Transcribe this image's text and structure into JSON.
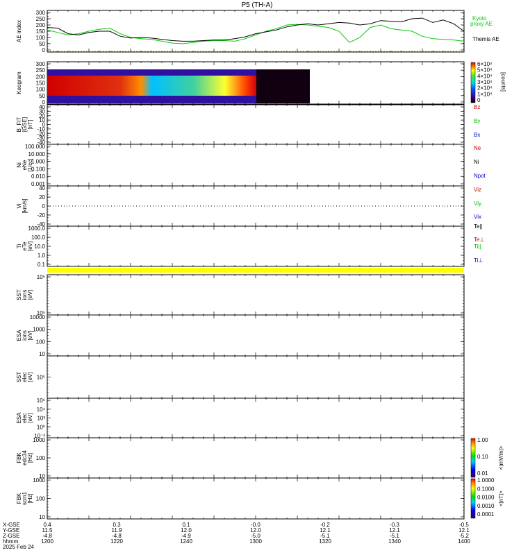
{
  "chart_data": [
    {
      "type": "line",
      "title": "P5 (TH-A)",
      "ylabel": "AE index",
      "yticks": [
        "300",
        "250",
        "200",
        "150",
        "100",
        "50",
        "0"
      ],
      "ylim": [
        0,
        300
      ],
      "xlim": [
        1200,
        1400
      ],
      "series": [
        {
          "name": "Kyoto proxy AE",
          "color": "#00cc00",
          "x": [
            1200,
            1205,
            1210,
            1215,
            1220,
            1225,
            1230,
            1235,
            1240,
            1245,
            1250,
            1255,
            1260,
            1265,
            1270,
            1275,
            1280,
            1285,
            1290,
            1295,
            1300,
            1305,
            1310,
            1315,
            1320,
            1325,
            1330,
            1335,
            1340,
            1345,
            1350,
            1355,
            1360,
            1365,
            1370,
            1375,
            1380,
            1385,
            1390,
            1395,
            1400
          ],
          "values": [
            160,
            140,
            120,
            130,
            150,
            165,
            175,
            130,
            100,
            90,
            85,
            70,
            55,
            50,
            60,
            70,
            75,
            75,
            70,
            90,
            120,
            150,
            170,
            200,
            205,
            200,
            190,
            180,
            150,
            60,
            100,
            180,
            200,
            170,
            160,
            150,
            110,
            90,
            85,
            80,
            70
          ]
        },
        {
          "name": "Themis AE",
          "color": "#000000",
          "x": [
            1200,
            1205,
            1210,
            1215,
            1220,
            1225,
            1230,
            1235,
            1240,
            1245,
            1250,
            1255,
            1260,
            1265,
            1270,
            1275,
            1280,
            1285,
            1290,
            1295,
            1300,
            1305,
            1310,
            1315,
            1320,
            1325,
            1330,
            1335,
            1340,
            1345,
            1350,
            1355,
            1360,
            1365,
            1370,
            1375,
            1380,
            1385,
            1390,
            1395,
            1400
          ],
          "values": [
            180,
            175,
            130,
            120,
            140,
            150,
            150,
            110,
            95,
            100,
            95,
            85,
            75,
            70,
            70,
            75,
            80,
            80,
            90,
            105,
            130,
            145,
            160,
            185,
            200,
            210,
            200,
            210,
            220,
            215,
            200,
            210,
            235,
            230,
            225,
            250,
            255,
            220,
            240,
            210,
            150
          ]
        }
      ]
    },
    {
      "type": "heatmap",
      "ylabel": "Keogram",
      "yticks": [
        "300",
        "250",
        "200",
        "150",
        "100",
        "50",
        "0"
      ],
      "ylim": [
        0,
        300
      ],
      "colorbar": {
        "label": "[counts]",
        "ticks": [
          "6×10⁴",
          "5×10⁴",
          "4×10⁴",
          "3×10⁴",
          "2×10⁴",
          "1×10⁴",
          "0"
        ]
      }
    },
    {
      "type": "line",
      "ylabel": "B_FIT [GSE] [nT]",
      "yticks": [
        "40",
        "30",
        "20",
        "10",
        "0",
        "-10",
        "-20",
        "-30",
        "-40"
      ],
      "ylim": [
        -40,
        40
      ],
      "series": [
        {
          "name": "Bz",
          "color": "#cc0000"
        },
        {
          "name": "By",
          "color": "#00bb00"
        },
        {
          "name": "Bx",
          "color": "#0000cc"
        }
      ]
    },
    {
      "type": "line",
      "ylabel": "Ni eNe [1/cc]",
      "yticks": [
        "100.000",
        "10.000",
        "1.000",
        "0.100",
        "0.010",
        "0.001"
      ],
      "series": [
        {
          "name": "Ne",
          "color": "#cc0000"
        },
        {
          "name": "Ni",
          "color": "#000000"
        },
        {
          "name": "Npot",
          "color": "#0000cc"
        }
      ]
    },
    {
      "type": "line",
      "ylabel": "Vi [km/s]",
      "yticks": [
        "40",
        "20",
        "0",
        "-20",
        "-40"
      ],
      "ylim": [
        -50,
        50
      ],
      "series": [
        {
          "name": "Viz",
          "color": "#cc0000"
        },
        {
          "name": "Viy",
          "color": "#00bb00"
        },
        {
          "name": "Vix",
          "color": "#0000cc"
        }
      ]
    },
    {
      "type": "line",
      "ylabel": "Ti eTe [eV]",
      "yticks": [
        "1000.0",
        "100.0",
        "10.0",
        "1.0",
        "0.1"
      ],
      "series": [
        {
          "name": "Te||",
          "color": "#000000"
        },
        {
          "name": "Te⊥",
          "color": "#cc0000"
        },
        {
          "name": "Ti||",
          "color": "#00bb00"
        },
        {
          "name": "Ti⊥",
          "color": "#0000cc"
        }
      ]
    },
    {
      "type": "heatmap",
      "ylabel": "SST ions [eV]",
      "yticks": [
        "10⁶",
        "10⁵"
      ]
    },
    {
      "type": "heatmap",
      "ylabel": "ESA ions [eV]",
      "yticks": [
        "10000",
        "1000",
        "100",
        "10"
      ]
    },
    {
      "type": "heatmap",
      "ylabel": "SST elec [eV]",
      "yticks": [
        "10⁵"
      ]
    },
    {
      "type": "heatmap",
      "ylabel": "ESA elec [eV]",
      "yticks": [
        "10⁶",
        "10⁴",
        "10³",
        "10⁰",
        "10⁻²"
      ]
    },
    {
      "type": "heatmap",
      "ylabel": "FBK edc34 [Hz]",
      "yticks": [
        "1000",
        "100",
        "10"
      ],
      "colorbar": {
        "label": "<|mV/m|>",
        "ticks": [
          "1.00",
          "0.10",
          "0.01"
        ]
      }
    },
    {
      "type": "heatmap",
      "ylabel": "FBK scm1 [Hz]",
      "yticks": [
        "1000",
        "100",
        "10"
      ],
      "colorbar": {
        "label": "<|nT|>",
        "ticks": [
          "1.0000",
          "0.1000",
          "0.0100",
          "0.0010",
          "0.0001"
        ]
      }
    }
  ],
  "xaxis": {
    "row_labels": [
      "X-GSE",
      "Y-GSE",
      "Z-GSE",
      "hhmm",
      "2025 Feb 24"
    ],
    "columns": [
      {
        "x": "0.4",
        "y": "11.5",
        "z": "-4.8",
        "t": "1200"
      },
      {
        "x": "0.3",
        "y": "11.9",
        "z": "-4.8",
        "t": "1220"
      },
      {
        "x": "0.1",
        "y": "12.0",
        "z": "-4.9",
        "t": "1240"
      },
      {
        "x": "-0.0",
        "y": "12.0",
        "z": "-5.0",
        "t": "1300"
      },
      {
        "x": "-0.2",
        "y": "12.1",
        "z": "-5.1",
        "t": "1320"
      },
      {
        "x": "-0.3",
        "y": "12.1",
        "z": "-5.1",
        "t": "1340"
      },
      {
        "x": "-0.5",
        "y": "12.1",
        "z": "-5.2",
        "t": "1400"
      }
    ]
  },
  "labels": {
    "kyoto": [
      "Kyoto",
      "proxy AE"
    ],
    "themis": "Themis AE",
    "b_ylabel": [
      "B_FIT",
      "[GSE]",
      "[nT]"
    ],
    "n_ylabel": [
      "Ni",
      "eNe",
      "[1/cc]"
    ],
    "v_ylabel": [
      "Vi",
      "[km/s]"
    ],
    "t_ylabel": [
      "Ti",
      "eTe",
      "[eV]"
    ],
    "sst_i": [
      "SST",
      "ions",
      "[eV]"
    ],
    "esa_i": [
      "ESA",
      "ions",
      "[eV]"
    ],
    "sst_e": [
      "SST",
      "elec",
      "[eV]"
    ],
    "esa_e": [
      "ESA",
      "elec",
      "[eV]"
    ],
    "fbk1": [
      "FBK",
      "edc34",
      "[Hz]"
    ],
    "fbk2": [
      "FBK",
      "scm1",
      "[Hz]"
    ]
  },
  "colors": {
    "bar_yellow": "#ffff00",
    "kyoto": "#00cc00",
    "themis": "#000000"
  }
}
